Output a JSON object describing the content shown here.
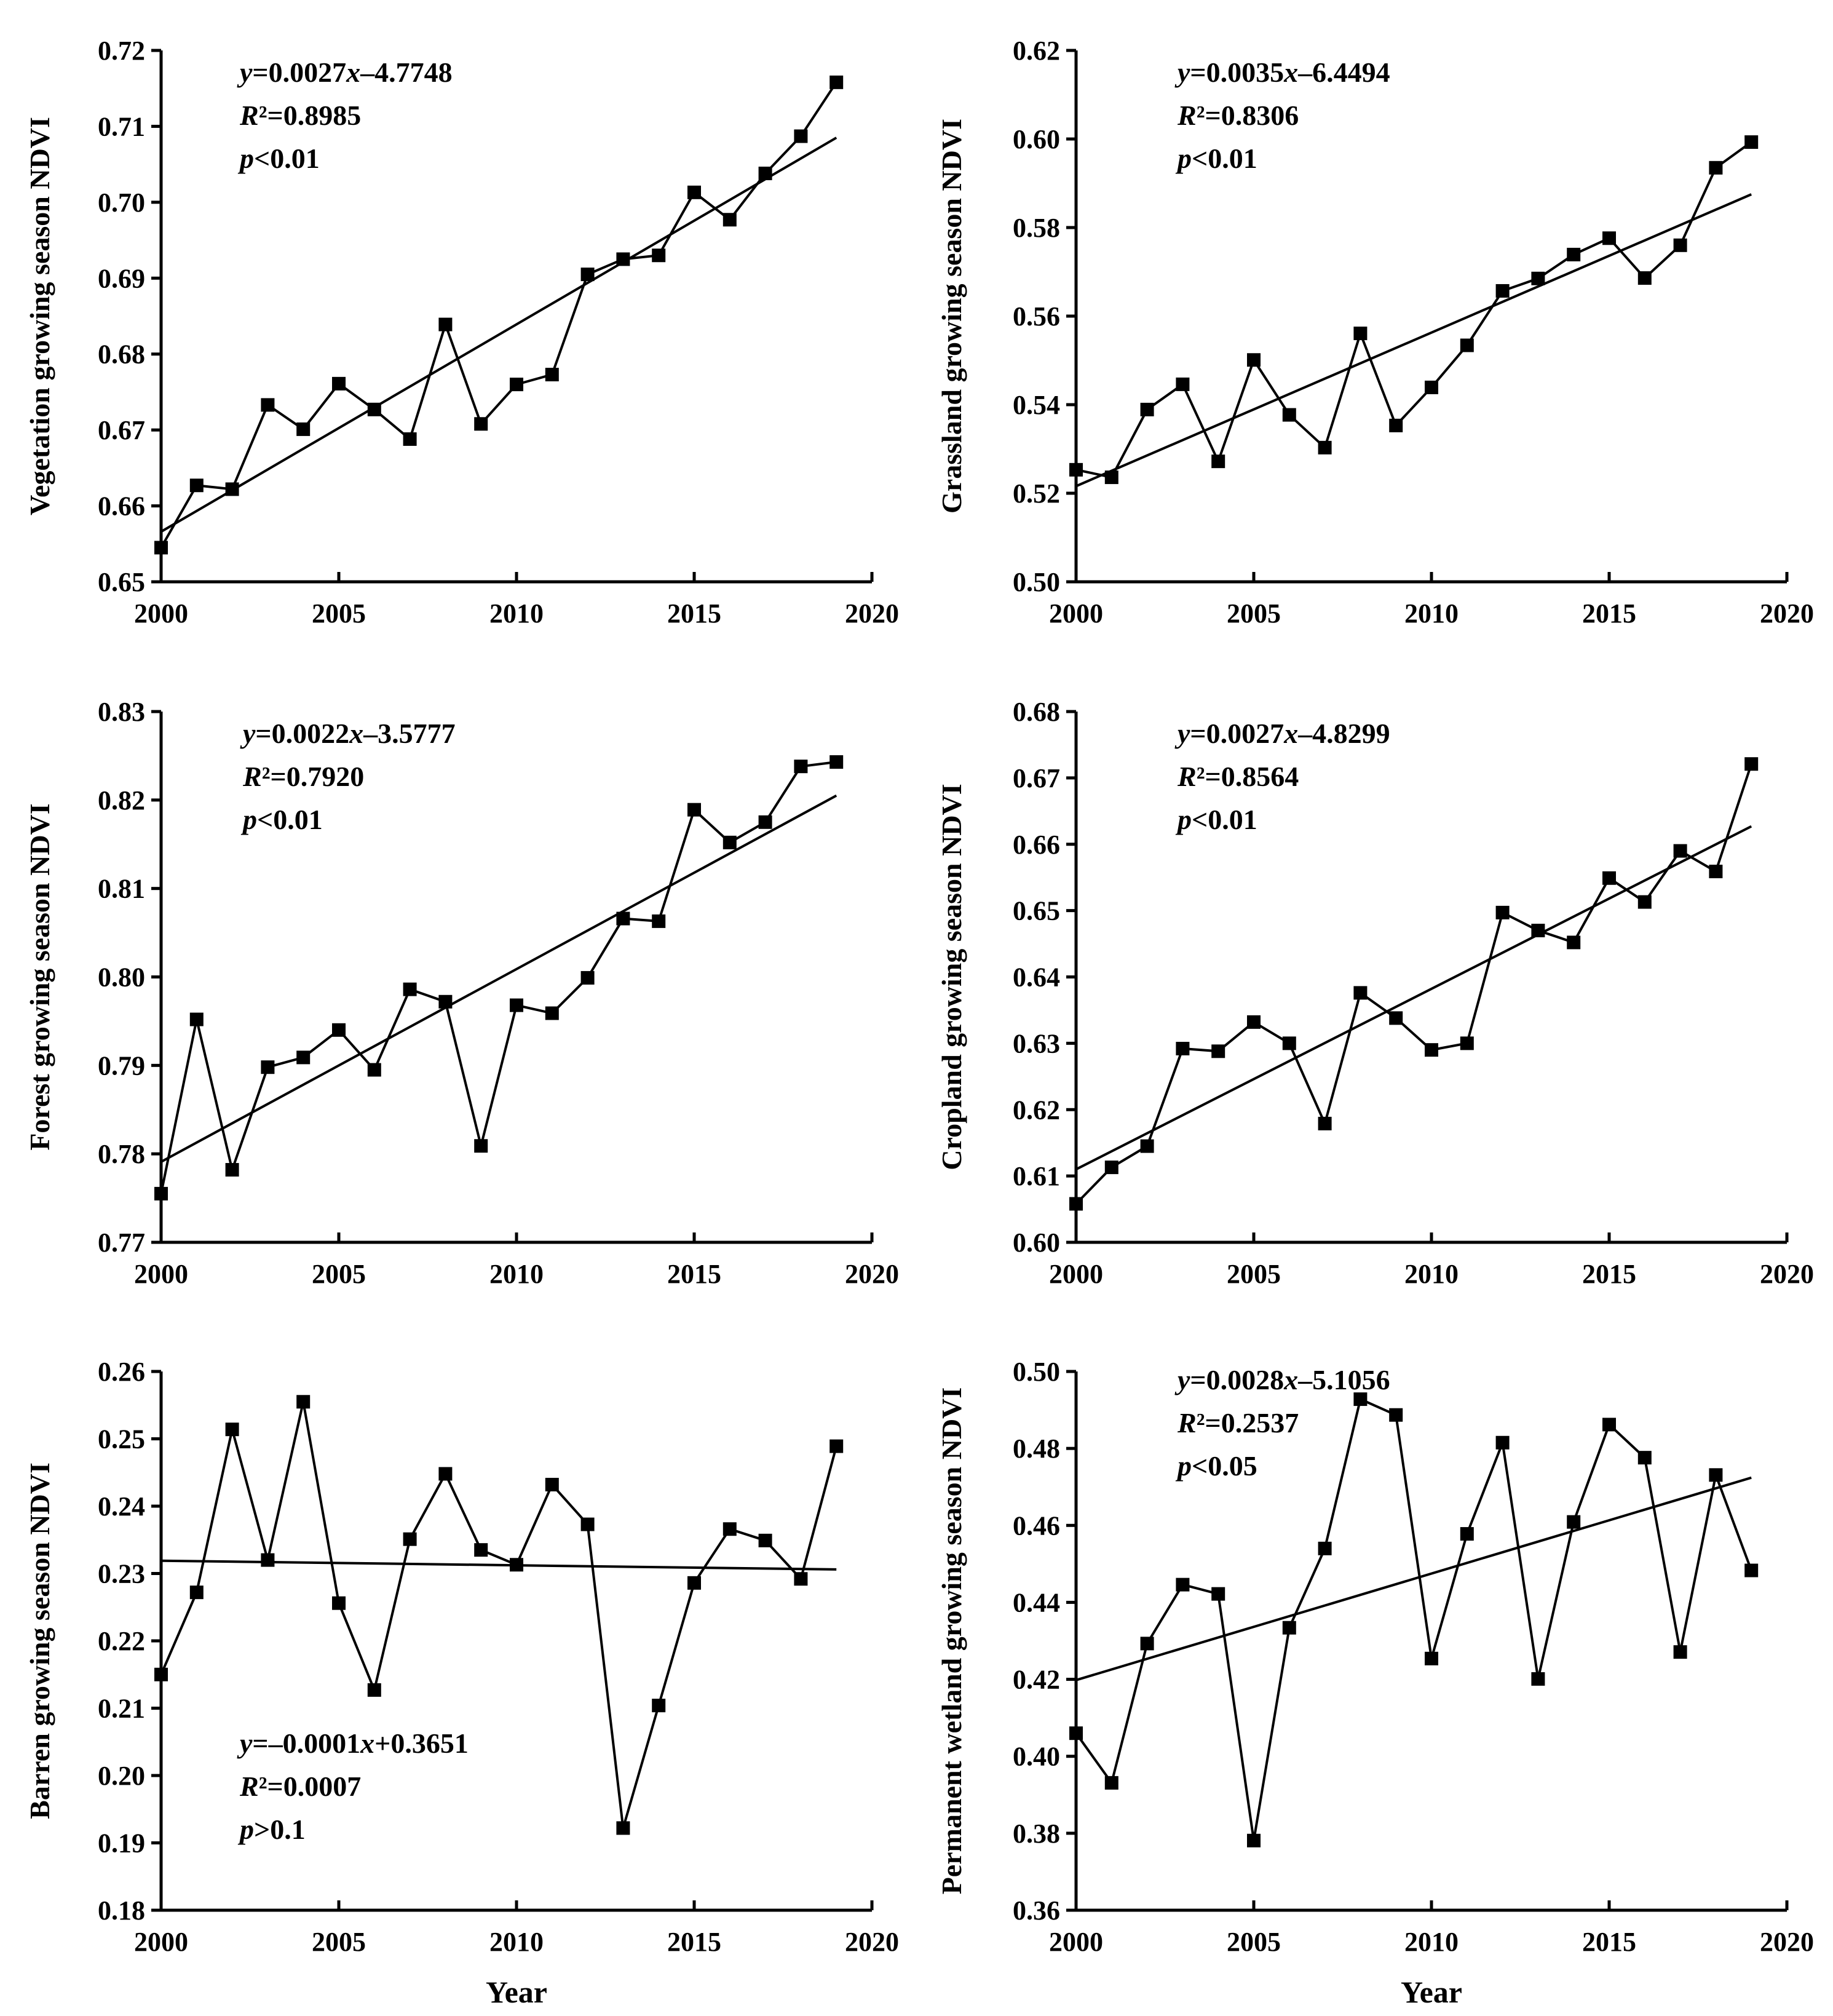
{
  "chart_data": [
    {
      "type": "line",
      "ylabel": "Vegetation growing season NDVI",
      "xlabel": "",
      "xlim": [
        2000,
        2020
      ],
      "xticks": [
        2000,
        2005,
        2010,
        2015,
        2020
      ],
      "ylim": [
        0.65,
        0.72
      ],
      "yticks": [
        "0.65",
        "0.66",
        "0.67",
        "0.68",
        "0.69",
        "0.70",
        "0.71",
        "0.72"
      ],
      "x": [
        2000,
        2001,
        2002,
        2003,
        2004,
        2005,
        2006,
        2007,
        2008,
        2009,
        2010,
        2011,
        2012,
        2013,
        2014,
        2015,
        2016,
        2017,
        2018,
        2019
      ],
      "values": [
        0.6545,
        0.6627,
        0.6622,
        0.6733,
        0.6701,
        0.6761,
        0.6727,
        0.6688,
        0.6839,
        0.6708,
        0.676,
        0.6773,
        0.6905,
        0.6925,
        0.693,
        0.7013,
        0.6977,
        0.7038,
        0.7087,
        0.7158
      ],
      "fit": {
        "slope": 0.0027,
        "intercept": -4.7748,
        "y_start": 0.6566,
        "y_end": 0.7085
      },
      "annotation": {
        "eq_y": "y",
        "eq_rest": "=0.0027",
        "eq_x": "x",
        "eq_tail": "–4.7748",
        "r2_r": "R",
        "r2_rest": "²=0.8985",
        "p_p": "p",
        "p_rest": "<0.01",
        "position": "top-left"
      }
    },
    {
      "type": "line",
      "ylabel": "Grassland growing season NDVI",
      "xlabel": "",
      "xlim": [
        2000,
        2020
      ],
      "xticks": [
        2000,
        2005,
        2010,
        2015,
        2020
      ],
      "ylim": [
        0.5,
        0.62
      ],
      "yticks": [
        "0.50",
        "0.52",
        "0.54",
        "0.56",
        "0.58",
        "0.60",
        "0.62"
      ],
      "x": [
        2000,
        2001,
        2002,
        2003,
        2004,
        2005,
        2006,
        2007,
        2008,
        2009,
        2010,
        2011,
        2012,
        2013,
        2014,
        2015,
        2016,
        2017,
        2018,
        2019
      ],
      "values": [
        0.5253,
        0.5236,
        0.5389,
        0.5446,
        0.5272,
        0.5501,
        0.5377,
        0.5303,
        0.5561,
        0.5353,
        0.5439,
        0.5534,
        0.5657,
        0.5685,
        0.5739,
        0.5776,
        0.5686,
        0.576,
        0.5935,
        0.5993
      ],
      "fit": {
        "slope": 0.0035,
        "intercept": -6.4494,
        "y_start": 0.5216,
        "y_end": 0.5875
      },
      "annotation": {
        "eq_y": "y",
        "eq_rest": "=0.0035",
        "eq_x": "x",
        "eq_tail": "–6.4494",
        "r2_r": "R",
        "r2_rest": "²=0.8306",
        "p_p": "p",
        "p_rest": "<0.01",
        "position": "top-left"
      }
    },
    {
      "type": "line",
      "ylabel": "Forest growing season NDVI",
      "xlabel": "",
      "xlim": [
        2000,
        2020
      ],
      "xticks": [
        2000,
        2005,
        2010,
        2015,
        2020
      ],
      "ylim": [
        0.77,
        0.83
      ],
      "yticks": [
        "0.77",
        "0.78",
        "0.79",
        "0.80",
        "0.81",
        "0.82",
        "0.83"
      ],
      "x": [
        2000,
        2001,
        2002,
        2003,
        2004,
        2005,
        2006,
        2007,
        2008,
        2009,
        2010,
        2011,
        2012,
        2013,
        2014,
        2015,
        2016,
        2017,
        2018,
        2019
      ],
      "values": [
        0.7755,
        0.7952,
        0.7782,
        0.7898,
        0.7909,
        0.794,
        0.7895,
        0.7986,
        0.7972,
        0.7809,
        0.7968,
        0.7959,
        0.7999,
        0.8066,
        0.8063,
        0.8189,
        0.8152,
        0.8175,
        0.8238,
        0.8243
      ],
      "fit": {
        "slope": 0.0022,
        "intercept": -3.5777,
        "y_start": 0.7791,
        "y_end": 0.8205
      },
      "annotation": {
        "eq_y": "y",
        "eq_rest": "=0.0022",
        "eq_x": "x",
        "eq_tail": "–3.5777",
        "r2_r": "R",
        "r2_rest": "²=0.7920",
        "p_p": "p",
        "p_rest": "<0.01",
        "position": "top-left"
      }
    },
    {
      "type": "line",
      "ylabel": "Cropland growing season NDVI",
      "xlabel": "",
      "xlim": [
        2000,
        2020
      ],
      "xticks": [
        2000,
        2005,
        2010,
        2015,
        2020
      ],
      "ylim": [
        0.6,
        0.68
      ],
      "yticks": [
        "0.60",
        "0.61",
        "0.62",
        "0.63",
        "0.64",
        "0.65",
        "0.66",
        "0.67",
        "0.68"
      ],
      "x": [
        2000,
        2001,
        2002,
        2003,
        2004,
        2005,
        2006,
        2007,
        2008,
        2009,
        2010,
        2011,
        2012,
        2013,
        2014,
        2015,
        2016,
        2017,
        2018,
        2019
      ],
      "values": [
        0.6058,
        0.6113,
        0.6145,
        0.6292,
        0.6288,
        0.6332,
        0.63,
        0.6179,
        0.6376,
        0.6338,
        0.629,
        0.63,
        0.6497,
        0.647,
        0.6452,
        0.6549,
        0.6513,
        0.659,
        0.6559,
        0.6721
      ],
      "fit": {
        "slope": 0.0027,
        "intercept": -4.8299,
        "y_start": 0.611,
        "y_end": 0.6627
      },
      "annotation": {
        "eq_y": "y",
        "eq_rest": "=0.0027",
        "eq_x": "x",
        "eq_tail": "–4.8299",
        "r2_r": "R",
        "r2_rest": "²=0.8564",
        "p_p": "p",
        "p_rest": "<0.01",
        "position": "top-left"
      }
    },
    {
      "type": "line",
      "ylabel": "Barren growing season NDVI",
      "xlabel": "Year",
      "xlim": [
        2000,
        2020
      ],
      "xticks": [
        2000,
        2005,
        2010,
        2015,
        2020
      ],
      "ylim": [
        0.18,
        0.26
      ],
      "yticks": [
        "0.18",
        "0.19",
        "0.20",
        "0.21",
        "0.22",
        "0.23",
        "0.24",
        "0.25",
        "0.26"
      ],
      "x": [
        2000,
        2001,
        2002,
        2003,
        2004,
        2005,
        2006,
        2007,
        2008,
        2009,
        2010,
        2011,
        2012,
        2013,
        2014,
        2015,
        2016,
        2017,
        2018,
        2019
      ],
      "values": [
        0.215,
        0.2272,
        0.2514,
        0.232,
        0.2555,
        0.2256,
        0.2127,
        0.2351,
        0.2448,
        0.2335,
        0.2313,
        0.2432,
        0.2373,
        0.1922,
        0.2104,
        0.2286,
        0.2366,
        0.2349,
        0.2292,
        0.2489
      ],
      "fit": {
        "slope": -0.0001,
        "intercept": 0.3651,
        "y_start": 0.2319,
        "y_end": 0.2306
      },
      "annotation": {
        "eq_y": "y",
        "eq_rest": "=–0.0001",
        "eq_x": "x",
        "eq_tail": "+0.3651",
        "r2_r": "R",
        "r2_rest": "²=0.0007",
        "p_p": "p",
        "p_rest": ">0.1",
        "position": "bottom-left"
      }
    },
    {
      "type": "line",
      "ylabel": "Permanent wetland growing season NDVI",
      "xlabel": "Year",
      "xlim": [
        2000,
        2020
      ],
      "xticks": [
        2000,
        2005,
        2010,
        2015,
        2020
      ],
      "ylim": [
        0.36,
        0.5
      ],
      "yticks": [
        "0.36",
        "0.38",
        "0.40",
        "0.42",
        "0.44",
        "0.46",
        "0.48",
        "0.50"
      ],
      "x": [
        2000,
        2001,
        2002,
        2003,
        2004,
        2005,
        2006,
        2007,
        2008,
        2009,
        2010,
        2011,
        2012,
        2013,
        2014,
        2015,
        2016,
        2017,
        2018,
        2019
      ],
      "values": [
        0.406,
        0.3931,
        0.4293,
        0.4446,
        0.4422,
        0.3781,
        0.4334,
        0.454,
        0.4928,
        0.4887,
        0.4254,
        0.4578,
        0.4815,
        0.4201,
        0.4609,
        0.4862,
        0.4776,
        0.4271,
        0.4731,
        0.4483
      ],
      "fit": {
        "slope": 0.0028,
        "intercept": -5.1056,
        "y_start": 0.4198,
        "y_end": 0.4724
      },
      "annotation": {
        "eq_y": "y",
        "eq_rest": "=0.0028",
        "eq_x": "x",
        "eq_tail": "–5.1056",
        "r2_r": "R",
        "r2_rest": "²=0.2537",
        "p_p": "p",
        "p_rest": "<0.05",
        "position": "top-left"
      }
    }
  ]
}
